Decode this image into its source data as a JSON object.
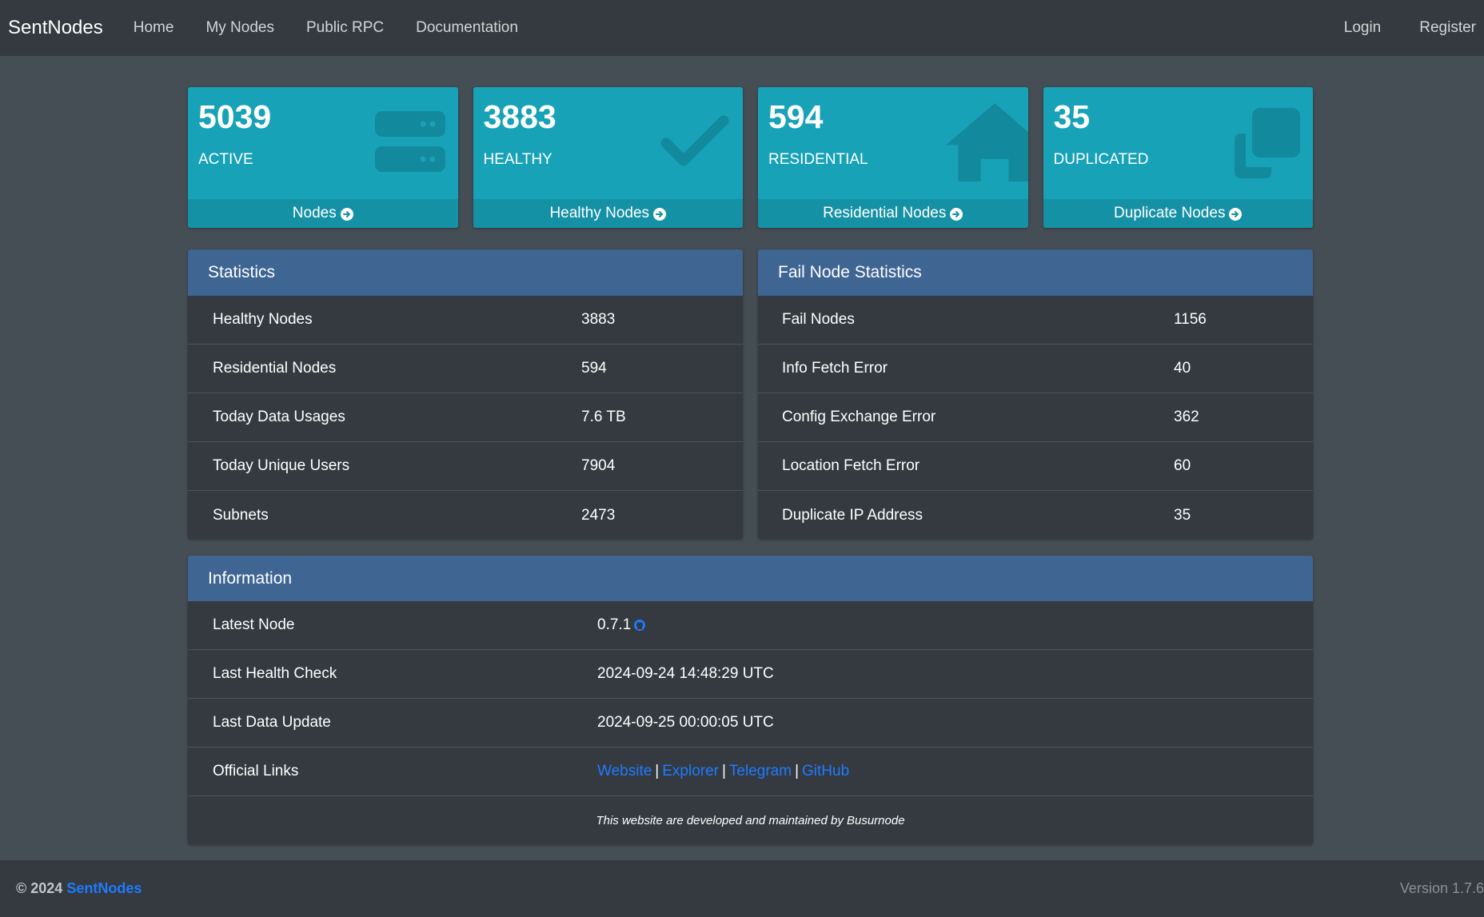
{
  "navbar": {
    "brand": "SentNodes",
    "links": [
      "Home",
      "My Nodes",
      "Public RPC",
      "Documentation"
    ],
    "right_links": [
      "Login",
      "Register"
    ]
  },
  "cards": [
    {
      "value": "5039",
      "label": "ACTIVE",
      "footer": "Nodes",
      "icon": "server-icon"
    },
    {
      "value": "3883",
      "label": "HEALTHY",
      "footer": "Healthy Nodes",
      "icon": "check-icon"
    },
    {
      "value": "594",
      "label": "RESIDENTIAL",
      "footer": "Residential Nodes",
      "icon": "house-icon"
    },
    {
      "value": "35",
      "label": "DUPLICATED",
      "footer": "Duplicate Nodes",
      "icon": "clone-icon"
    }
  ],
  "statistics": {
    "title": "Statistics",
    "rows": [
      {
        "k": "Healthy Nodes",
        "v": "3883"
      },
      {
        "k": "Residential Nodes",
        "v": "594"
      },
      {
        "k": "Today Data Usages",
        "v": "7.6 TB"
      },
      {
        "k": "Today Unique Users",
        "v": "7904"
      },
      {
        "k": "Subnets",
        "v": "2473"
      }
    ]
  },
  "fail_statistics": {
    "title": "Fail Node Statistics",
    "rows": [
      {
        "k": "Fail Nodes",
        "v": "1156"
      },
      {
        "k": "Info Fetch Error",
        "v": "40"
      },
      {
        "k": "Config Exchange Error",
        "v": "362"
      },
      {
        "k": "Location Fetch Error",
        "v": "60"
      },
      {
        "k": "Duplicate IP Address",
        "v": "35"
      }
    ]
  },
  "information": {
    "title": "Information",
    "latest_node_label": "Latest Node",
    "latest_node_value": "0.7.1",
    "last_health_label": "Last Health Check",
    "last_health_value": "2024-09-24 14:48:29 UTC",
    "last_data_label": "Last Data Update",
    "last_data_value": "2024-09-25 00:00:05 UTC",
    "official_links_label": "Official Links",
    "official_links": [
      "Website",
      "Explorer",
      "Telegram",
      "GitHub"
    ],
    "separator": "|",
    "note": "This website are developed and maintained by Busurnode"
  },
  "footer": {
    "copyright": "© 2024",
    "brand": "SentNodes",
    "version": "Version 1.7.6"
  },
  "colors": {
    "card_bg": "#17a2b8",
    "panel_header": "#3f6593",
    "link": "#1f7bff"
  }
}
